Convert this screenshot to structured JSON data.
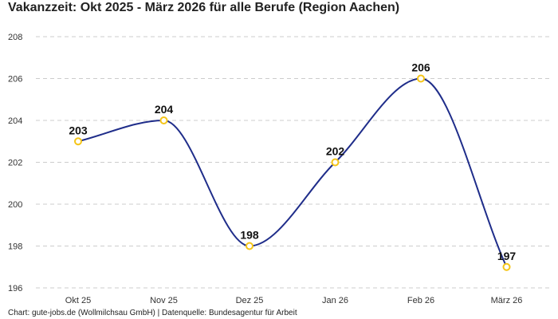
{
  "chart_data": {
    "type": "line",
    "title": "Vakanzzeit: Okt 2025 - März 2026 für alle Berufe (Region Aachen)",
    "categories": [
      "Okt 25",
      "Nov 25",
      "Dez 25",
      "Jan 26",
      "Feb 26",
      "März 26"
    ],
    "series": [
      {
        "values": [
          203,
          204,
          198,
          202,
          206,
          197
        ]
      }
    ],
    "data_labels": [
      "203",
      "204",
      "198",
      "202",
      "206",
      "197"
    ],
    "ylim": [
      196,
      208
    ],
    "yticks": [
      196,
      198,
      200,
      202,
      204,
      206,
      208
    ],
    "ytick_labels": [
      "196",
      "198",
      "200",
      "202",
      "204",
      "206",
      "208"
    ],
    "xlabel": "",
    "ylabel": "",
    "grid": true,
    "smooth": true,
    "legend": false,
    "colors": {
      "line": "#1f2d8a",
      "marker_stroke": "#f5c518",
      "marker_fill": "#ffffff",
      "grid": "#cccccc"
    }
  },
  "footer": {
    "source": "Chart: gute-jobs.de (Wollmilchsau GmbH) | Datenquelle: Bundesagentur für Arbeit"
  }
}
